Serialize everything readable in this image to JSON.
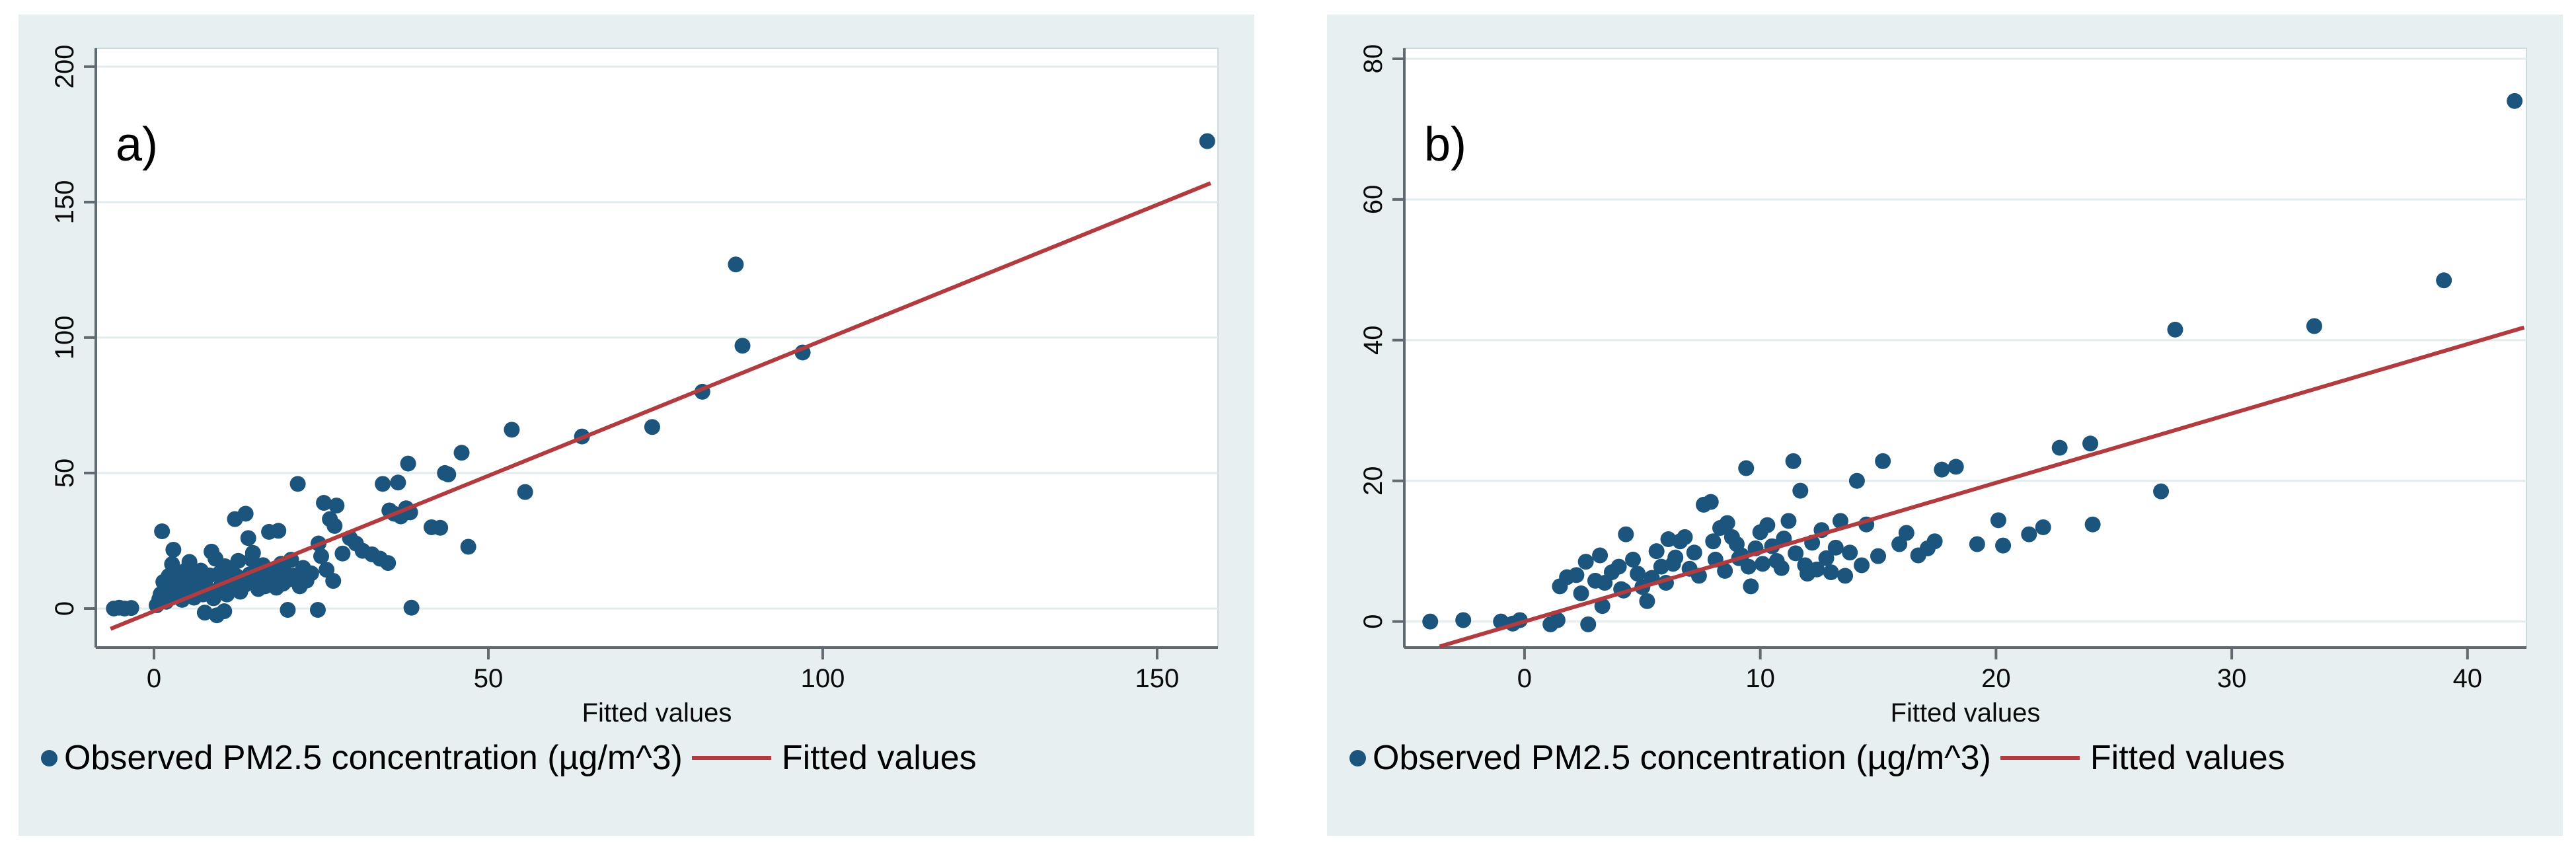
{
  "styles": {
    "page_bg": "#ffffff",
    "panel_bg": "#e7eff1",
    "plot_bg": "#ffffff",
    "grid_color": "#e2ecee",
    "frame_color": "#ccdbde",
    "axis_color": "#5f6b70",
    "tick_text_color": "#0a0a0a",
    "marker_color": "#1b547d",
    "fit_line_color": "#b23b40"
  },
  "chart_data": [
    {
      "type": "scatter",
      "panel_label": "a)",
      "xlabel": "Fitted values",
      "ylabel": "",
      "legend": [
        {
          "marker": "dot",
          "label": "Observed PM2.5 concentration (µg/m^3)"
        },
        {
          "marker": "line",
          "label": "Fitted values"
        }
      ],
      "legend_position": "bottom",
      "grid": "horizontal",
      "xticks": [
        0,
        50,
        100,
        150
      ],
      "yticks": [
        0,
        50,
        100,
        150,
        200
      ],
      "xlim": [
        -8.7,
        159.1
      ],
      "ylim": [
        -14.4,
        206.8
      ],
      "fit_line": {
        "x1": -6.5,
        "y1": -7.5,
        "x2": 158.0,
        "y2": 157.0
      },
      "points": [
        [
          -6,
          0
        ],
        [
          -5.2,
          0.3
        ],
        [
          -4.4,
          0
        ],
        [
          -3.4,
          0.2
        ],
        [
          7.6,
          -1.5
        ],
        [
          9.4,
          -2.5
        ],
        [
          10.5,
          -1
        ],
        [
          20,
          -0.5
        ],
        [
          24.5,
          -0.5
        ],
        [
          38.5,
          0.3
        ],
        [
          0.4,
          1.2
        ],
        [
          0.8,
          3.5
        ],
        [
          1,
          5.3
        ],
        [
          1.2,
          28.5
        ],
        [
          1.4,
          9.8
        ],
        [
          1.8,
          2.5
        ],
        [
          2,
          7
        ],
        [
          2.2,
          12
        ],
        [
          2.7,
          16.4
        ],
        [
          2.9,
          21.7
        ],
        [
          3,
          4.5
        ],
        [
          3.3,
          9
        ],
        [
          3.6,
          6.5
        ],
        [
          3.9,
          11.5
        ],
        [
          4.2,
          3.2
        ],
        [
          4.4,
          8
        ],
        [
          4.7,
          14
        ],
        [
          5,
          5.8
        ],
        [
          5.3,
          17.2
        ],
        [
          5.5,
          10.5
        ],
        [
          5.7,
          13.1
        ],
        [
          6,
          4
        ],
        [
          6.2,
          8.8
        ],
        [
          6.5,
          6.2
        ],
        [
          6.8,
          11
        ],
        [
          7,
          14
        ],
        [
          7.3,
          5.2
        ],
        [
          7.6,
          9.6
        ],
        [
          8,
          7.2
        ],
        [
          8.3,
          12.2
        ],
        [
          8.6,
          21
        ],
        [
          8.9,
          3.8
        ],
        [
          9.2,
          18.4
        ],
        [
          9.5,
          6.8
        ],
        [
          9.8,
          13
        ],
        [
          10,
          8.2
        ],
        [
          10.3,
          11.6
        ],
        [
          10.6,
          15.6
        ],
        [
          10.9,
          5.2
        ],
        [
          11.2,
          9.7
        ],
        [
          11.5,
          14.2
        ],
        [
          11.9,
          7.2
        ],
        [
          12.1,
          33
        ],
        [
          12.3,
          12
        ],
        [
          12.6,
          17.6
        ],
        [
          12.9,
          6.2
        ],
        [
          13.2,
          10.2
        ],
        [
          13.5,
          8.6
        ],
        [
          13.7,
          35
        ],
        [
          14.1,
          26
        ],
        [
          14.3,
          12.6
        ],
        [
          14.6,
          18.2
        ],
        [
          14.8,
          20.5
        ],
        [
          15,
          9.2
        ],
        [
          15.3,
          13.6
        ],
        [
          15.6,
          7.2
        ],
        [
          16,
          11.2
        ],
        [
          16.3,
          16
        ],
        [
          16.6,
          8.2
        ],
        [
          17,
          12.6
        ],
        [
          17.2,
          28.3
        ],
        [
          17.6,
          9.7
        ],
        [
          18,
          14
        ],
        [
          18.3,
          7.7
        ],
        [
          18.6,
          28.7
        ],
        [
          19,
          16.5
        ],
        [
          19.3,
          9.2
        ],
        [
          19.6,
          13.2
        ],
        [
          20,
          10.6
        ],
        [
          20.5,
          18
        ],
        [
          21,
          12.2
        ],
        [
          21.5,
          46
        ],
        [
          21.8,
          8.2
        ],
        [
          22.3,
          15
        ],
        [
          22.8,
          10.3
        ],
        [
          23.5,
          13
        ],
        [
          24.6,
          24
        ],
        [
          25,
          19.3
        ],
        [
          25.4,
          39
        ],
        [
          25.8,
          14.3
        ],
        [
          26.3,
          33
        ],
        [
          26.8,
          10.2
        ],
        [
          27,
          30.5
        ],
        [
          27.3,
          38
        ],
        [
          28.2,
          20.3
        ],
        [
          29.3,
          26
        ],
        [
          30.2,
          24
        ],
        [
          31.2,
          21.3
        ],
        [
          32.6,
          20
        ],
        [
          33.8,
          18.4
        ],
        [
          34.2,
          46
        ],
        [
          35,
          16.8
        ],
        [
          35.2,
          36.2
        ],
        [
          35.9,
          35
        ],
        [
          36.5,
          46.5
        ],
        [
          36.9,
          34
        ],
        [
          37.7,
          37
        ],
        [
          38.3,
          35.5
        ],
        [
          41.5,
          30
        ],
        [
          42.8,
          29.8
        ],
        [
          44,
          49.5
        ],
        [
          47,
          22.8
        ],
        [
          43.5,
          50
        ],
        [
          38,
          53.5
        ],
        [
          46,
          57.5
        ],
        [
          53.5,
          66
        ],
        [
          55.5,
          43
        ],
        [
          64,
          63.5
        ],
        [
          74.5,
          67
        ],
        [
          82,
          80
        ],
        [
          87,
          127
        ],
        [
          88,
          97
        ],
        [
          97,
          94.5
        ],
        [
          157.5,
          172.5
        ]
      ]
    },
    {
      "type": "scatter",
      "panel_label": "b)",
      "xlabel": "Fitted values",
      "ylabel": "",
      "legend": [
        {
          "marker": "dot",
          "label": "Observed PM2.5 concentration (µg/m^3)"
        },
        {
          "marker": "line",
          "label": "Fitted values"
        }
      ],
      "legend_position": "bottom",
      "grid": "horizontal",
      "xticks": [
        0,
        10,
        20,
        30,
        40
      ],
      "yticks": [
        0,
        20,
        40,
        60,
        80
      ],
      "xlim": [
        -5.1,
        42.5
      ],
      "ylim": [
        -3.7,
        81.5
      ],
      "fit_line": {
        "x1": -3.6,
        "y1": -3.55,
        "x2": 42.4,
        "y2": 41.8
      },
      "points": [
        [
          -4,
          0
        ],
        [
          -2.6,
          0.2
        ],
        [
          -1,
          0
        ],
        [
          -0.5,
          -0.3
        ],
        [
          -0.2,
          0.2
        ],
        [
          1.1,
          -0.4
        ],
        [
          1.4,
          0.2
        ],
        [
          2.7,
          -0.4
        ],
        [
          1.5,
          5
        ],
        [
          1.8,
          6.3
        ],
        [
          2.2,
          6.6
        ],
        [
          2.4,
          4
        ],
        [
          2.6,
          8.5
        ],
        [
          3,
          5.8
        ],
        [
          3.2,
          9.4
        ],
        [
          3.4,
          5.5
        ],
        [
          3.7,
          7
        ],
        [
          4,
          7.8
        ],
        [
          4.1,
          4.6
        ],
        [
          4.3,
          12.4
        ],
        [
          4.6,
          8.8
        ],
        [
          4.8,
          6.8
        ],
        [
          5,
          4.9
        ],
        [
          5.2,
          2.9
        ],
        [
          5.4,
          6.2
        ],
        [
          5.6,
          10
        ],
        [
          5.8,
          7.8
        ],
        [
          6,
          5.5
        ],
        [
          6.1,
          11.7
        ],
        [
          6.3,
          8.2
        ],
        [
          6.4,
          9.1
        ],
        [
          6.6,
          11.4
        ],
        [
          6.8,
          12
        ],
        [
          7,
          7.5
        ],
        [
          7.2,
          9.8
        ],
        [
          7.4,
          6.5
        ],
        [
          7.6,
          16.6
        ],
        [
          7.9,
          17
        ],
        [
          8,
          11.4
        ],
        [
          8.1,
          8.8
        ],
        [
          8.3,
          13.3
        ],
        [
          8.5,
          7.2
        ],
        [
          8.6,
          14
        ],
        [
          8.8,
          12
        ],
        [
          9,
          11
        ],
        [
          9.1,
          9
        ],
        [
          9.2,
          9.4
        ],
        [
          9.4,
          21.8
        ],
        [
          9.5,
          7.8
        ],
        [
          9.6,
          5
        ],
        [
          9.8,
          10.4
        ],
        [
          10,
          12.7
        ],
        [
          10.1,
          8.2
        ],
        [
          10.3,
          13.7
        ],
        [
          10.5,
          10.7
        ],
        [
          10.7,
          8.6
        ],
        [
          10.9,
          7.6
        ],
        [
          11,
          11.8
        ],
        [
          11.2,
          14.3
        ],
        [
          11.4,
          22.8
        ],
        [
          11.5,
          9.7
        ],
        [
          11.7,
          18.6
        ],
        [
          11.9,
          8
        ],
        [
          12,
          6.8
        ],
        [
          12.2,
          11.2
        ],
        [
          12.4,
          7.4
        ],
        [
          12.6,
          13
        ],
        [
          12.8,
          9
        ],
        [
          13,
          7
        ],
        [
          13.2,
          10.5
        ],
        [
          13.4,
          14.3
        ],
        [
          13.6,
          6.5
        ],
        [
          13.8,
          9.8
        ],
        [
          14.1,
          20
        ],
        [
          14.3,
          8
        ],
        [
          14.5,
          13.8
        ],
        [
          15,
          9.3
        ],
        [
          15.2,
          22.8
        ],
        [
          3.3,
          2.2
        ],
        [
          4.2,
          4.4
        ],
        [
          15.9,
          11
        ],
        [
          16.2,
          12.6
        ],
        [
          16.7,
          9.4
        ],
        [
          17.1,
          10.4
        ],
        [
          17.4,
          11.4
        ],
        [
          17.7,
          21.6
        ],
        [
          18.3,
          22
        ],
        [
          19.2,
          11
        ],
        [
          20.1,
          14.4
        ],
        [
          20.3,
          10.8
        ],
        [
          21.4,
          12.4
        ],
        [
          22,
          13.4
        ],
        [
          22.7,
          24.7
        ],
        [
          24,
          25.3
        ],
        [
          24.1,
          13.8
        ],
        [
          27,
          18.5
        ],
        [
          27.6,
          41.5
        ],
        [
          33.5,
          42
        ],
        [
          39,
          48.5
        ],
        [
          42,
          74
        ]
      ]
    }
  ]
}
